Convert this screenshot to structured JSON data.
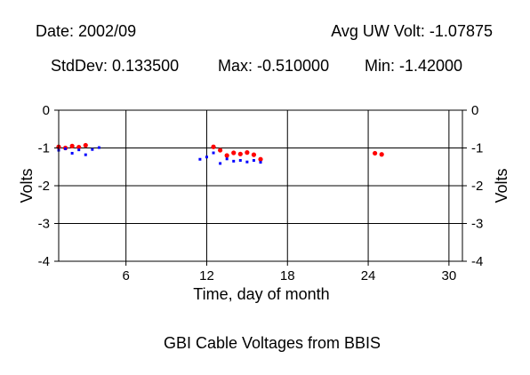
{
  "header": {
    "date_text": "Date: 2002/09",
    "avg_text": "Avg UW Volt: -1.07875",
    "stddev_text": "StdDev: 0.133500",
    "max_text": "Max: -0.510000",
    "min_text": "Min: -1.42000"
  },
  "chart_data": {
    "type": "scatter",
    "title": "GBI Cable Voltages from BBIS",
    "xlabel": "Time, day of month",
    "ylabel": "Volts",
    "xlim": [
      1,
      31
    ],
    "ylim": [
      -4,
      0
    ],
    "x_ticks": [
      6,
      12,
      18,
      24,
      30
    ],
    "y_ticks": [
      0,
      -1,
      -2,
      -3,
      -4
    ],
    "grid": true,
    "series": [
      {
        "color": "#ff0000",
        "x": [
          1.0,
          1.5,
          2.0,
          2.5,
          3.0,
          12.5,
          13.0,
          13.5,
          14.0,
          14.5,
          15.0,
          15.5,
          16.0,
          24.5,
          25.0
        ],
        "y": [
          -0.97,
          -1.0,
          -0.95,
          -0.98,
          -0.93,
          -0.97,
          -1.06,
          -1.2,
          -1.13,
          -1.16,
          -1.12,
          -1.18,
          -1.3,
          -1.14,
          -1.17
        ]
      },
      {
        "color": "#0000ff",
        "x": [
          1.0,
          1.5,
          2.0,
          2.5,
          3.0,
          3.5,
          4.0,
          11.5,
          12.0,
          12.5,
          13.0,
          13.5,
          14.0,
          14.5,
          15.0,
          15.5,
          16.0
        ],
        "y": [
          -1.06,
          -1.02,
          -1.14,
          -1.05,
          -1.18,
          -1.04,
          -0.99,
          -1.3,
          -1.24,
          -1.13,
          -1.41,
          -1.29,
          -1.35,
          -1.33,
          -1.37,
          -1.33,
          -1.38
        ]
      }
    ]
  }
}
